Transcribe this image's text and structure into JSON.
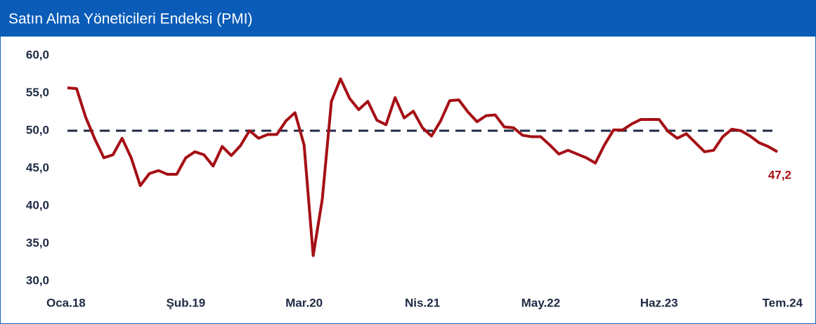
{
  "chart_data": {
    "type": "line",
    "title": "Satın Alma Yöneticileri Endeksi (PMI)",
    "categories": [
      "Oca.18",
      null,
      null,
      null,
      null,
      null,
      null,
      null,
      null,
      null,
      null,
      null,
      null,
      "Şub.19",
      null,
      null,
      null,
      null,
      null,
      null,
      null,
      null,
      null,
      null,
      null,
      null,
      "Mar.20",
      null,
      null,
      null,
      null,
      null,
      null,
      null,
      null,
      null,
      null,
      null,
      null,
      "Nis.21",
      null,
      null,
      null,
      null,
      null,
      null,
      null,
      null,
      null,
      null,
      null,
      null,
      "May.22",
      null,
      null,
      null,
      null,
      null,
      null,
      null,
      null,
      null,
      null,
      null,
      null,
      "Haz.23",
      null,
      null,
      null,
      null,
      null,
      null,
      null,
      null,
      null,
      null,
      null,
      null,
      "Tem.24"
    ],
    "series": [
      {
        "name": "PMI",
        "color": "#a50f15",
        "values": [
          55.7,
          55.6,
          51.8,
          48.9,
          46.4,
          46.8,
          49.0,
          46.4,
          42.7,
          44.3,
          44.7,
          44.2,
          44.2,
          46.4,
          47.2,
          46.8,
          45.3,
          47.9,
          46.7,
          48.0,
          50.0,
          49.0,
          49.5,
          49.5,
          51.3,
          52.4,
          48.1,
          33.4,
          40.9,
          53.9,
          56.9,
          54.3,
          52.8,
          53.9,
          51.4,
          50.8,
          54.4,
          51.7,
          52.6,
          50.4,
          49.3,
          51.3,
          54.0,
          54.1,
          52.5,
          51.2,
          52.0,
          52.1,
          50.5,
          50.4,
          49.4,
          49.2,
          49.2,
          48.1,
          46.9,
          47.4,
          46.9,
          46.4,
          45.7,
          48.1,
          50.1,
          50.1,
          50.9,
          51.5,
          51.5,
          51.5,
          49.9,
          49.0,
          49.6,
          48.4,
          47.2,
          47.4,
          49.2,
          50.2,
          50.0,
          49.3,
          48.4,
          47.9,
          47.2
        ],
        "value_labels": {
          "78": "47,2"
        }
      }
    ],
    "ylim": [
      30,
      60
    ],
    "yticks": [
      {
        "value": 30,
        "label": "30,0"
      },
      {
        "value": 35,
        "label": "35,0"
      },
      {
        "value": 40,
        "label": "40,0"
      },
      {
        "value": 45,
        "label": "45,0"
      },
      {
        "value": 50,
        "label": "50,0"
      },
      {
        "value": 55,
        "label": "55,0"
      },
      {
        "value": 60,
        "label": "60,0"
      }
    ],
    "reference_line": {
      "value": 50,
      "color": "#1f2a44"
    },
    "grid": false
  }
}
